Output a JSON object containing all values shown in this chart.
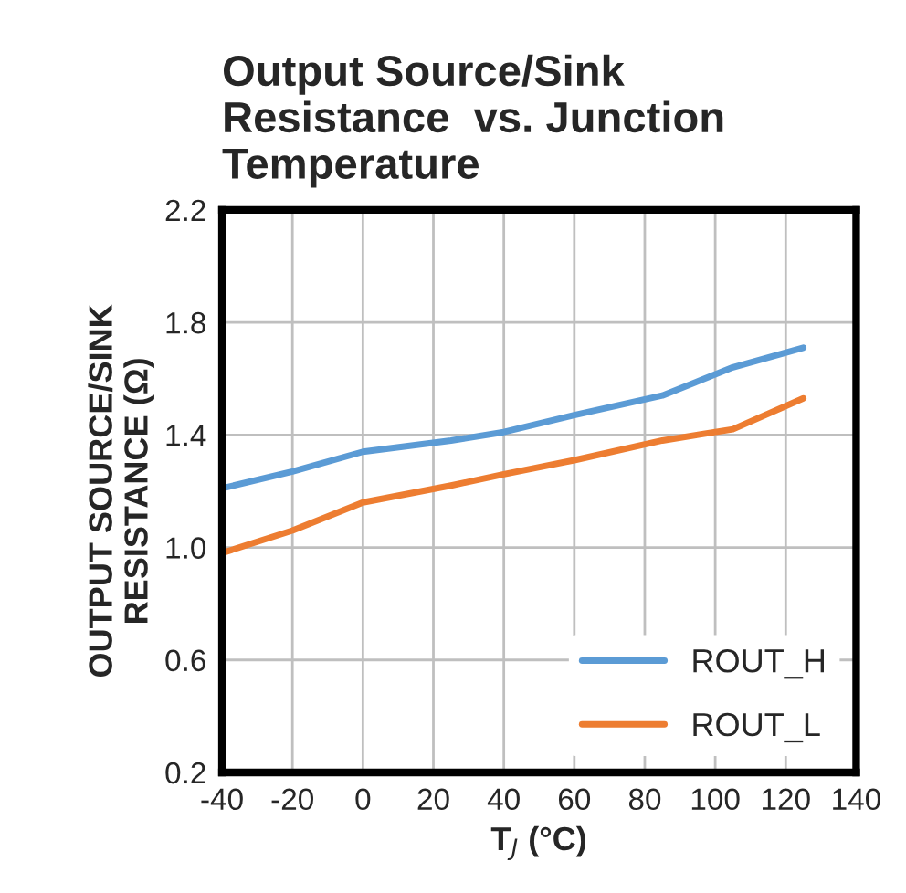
{
  "chart_data": {
    "type": "line",
    "title": "Output Source/Sink\nResistance  vs. Junction\nTemperature",
    "xlabel": "T$_{J}$ (°C)",
    "ylabel": "OUTPUT SOURCE/SINK\nRESISTANCE (Ω)",
    "xlim": [
      -40,
      140
    ],
    "xticks": [
      -40,
      -20,
      0,
      20,
      40,
      60,
      80,
      100,
      120,
      140
    ],
    "ylim": [
      0.2,
      2.2
    ],
    "yticks": [
      0.2,
      0.6,
      {
        "value": 1,
        "label": "1.0"
      },
      1.4,
      1.8,
      2.2
    ],
    "grid": true,
    "legend": "bottom right",
    "series": [
      {
        "name": "ROUT_H",
        "color": "#5b9bd5",
        "x": [
          -40,
          -20,
          0,
          25,
          40,
          60,
          85,
          105,
          125
        ],
        "values": [
          1.21,
          1.27,
          1.34,
          1.38,
          1.41,
          1.47,
          1.54,
          1.64,
          1.71
        ]
      },
      {
        "name": "ROUT_L",
        "color": "#ed7d31",
        "x": [
          -40,
          -20,
          0,
          25,
          40,
          60,
          85,
          105,
          125
        ],
        "values": [
          0.98,
          1.06,
          1.16,
          1.22,
          1.26,
          1.31,
          1.38,
          1.42,
          1.53
        ]
      }
    ]
  }
}
